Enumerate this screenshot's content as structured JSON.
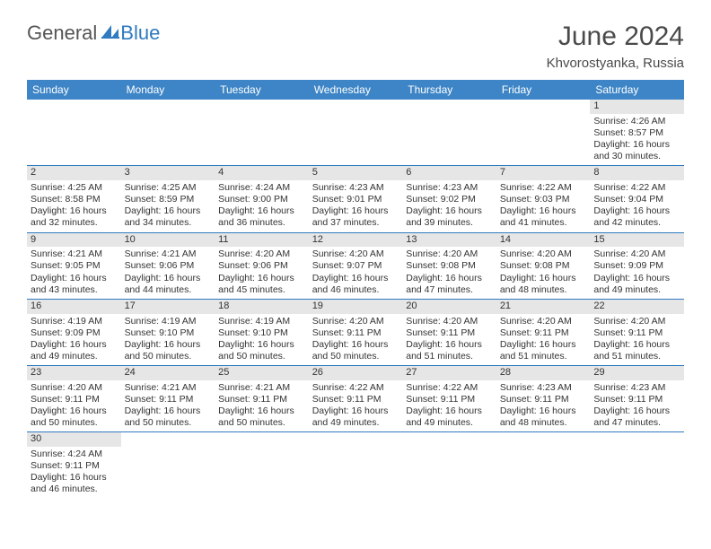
{
  "logo": {
    "general": "General",
    "blue": "Blue"
  },
  "title": "June 2024",
  "subtitle": "Khvorostyanka, Russia",
  "colors": {
    "header_bg": "#3d85c6",
    "header_text": "#ffffff",
    "border": "#2f7ac0",
    "daynum_bg": "#e6e6e6",
    "text": "#333333",
    "logo_blue": "#2f7ac0",
    "title_color": "#4a4a4a"
  },
  "weekdays": [
    "Sunday",
    "Monday",
    "Tuesday",
    "Wednesday",
    "Thursday",
    "Friday",
    "Saturday"
  ],
  "weeks": [
    [
      null,
      null,
      null,
      null,
      null,
      null,
      {
        "n": "1",
        "sunrise": "Sunrise: 4:26 AM",
        "sunset": "Sunset: 8:57 PM",
        "day1": "Daylight: 16 hours",
        "day2": "and 30 minutes."
      }
    ],
    [
      {
        "n": "2",
        "sunrise": "Sunrise: 4:25 AM",
        "sunset": "Sunset: 8:58 PM",
        "day1": "Daylight: 16 hours",
        "day2": "and 32 minutes."
      },
      {
        "n": "3",
        "sunrise": "Sunrise: 4:25 AM",
        "sunset": "Sunset: 8:59 PM",
        "day1": "Daylight: 16 hours",
        "day2": "and 34 minutes."
      },
      {
        "n": "4",
        "sunrise": "Sunrise: 4:24 AM",
        "sunset": "Sunset: 9:00 PM",
        "day1": "Daylight: 16 hours",
        "day2": "and 36 minutes."
      },
      {
        "n": "5",
        "sunrise": "Sunrise: 4:23 AM",
        "sunset": "Sunset: 9:01 PM",
        "day1": "Daylight: 16 hours",
        "day2": "and 37 minutes."
      },
      {
        "n": "6",
        "sunrise": "Sunrise: 4:23 AM",
        "sunset": "Sunset: 9:02 PM",
        "day1": "Daylight: 16 hours",
        "day2": "and 39 minutes."
      },
      {
        "n": "7",
        "sunrise": "Sunrise: 4:22 AM",
        "sunset": "Sunset: 9:03 PM",
        "day1": "Daylight: 16 hours",
        "day2": "and 41 minutes."
      },
      {
        "n": "8",
        "sunrise": "Sunrise: 4:22 AM",
        "sunset": "Sunset: 9:04 PM",
        "day1": "Daylight: 16 hours",
        "day2": "and 42 minutes."
      }
    ],
    [
      {
        "n": "9",
        "sunrise": "Sunrise: 4:21 AM",
        "sunset": "Sunset: 9:05 PM",
        "day1": "Daylight: 16 hours",
        "day2": "and 43 minutes."
      },
      {
        "n": "10",
        "sunrise": "Sunrise: 4:21 AM",
        "sunset": "Sunset: 9:06 PM",
        "day1": "Daylight: 16 hours",
        "day2": "and 44 minutes."
      },
      {
        "n": "11",
        "sunrise": "Sunrise: 4:20 AM",
        "sunset": "Sunset: 9:06 PM",
        "day1": "Daylight: 16 hours",
        "day2": "and 45 minutes."
      },
      {
        "n": "12",
        "sunrise": "Sunrise: 4:20 AM",
        "sunset": "Sunset: 9:07 PM",
        "day1": "Daylight: 16 hours",
        "day2": "and 46 minutes."
      },
      {
        "n": "13",
        "sunrise": "Sunrise: 4:20 AM",
        "sunset": "Sunset: 9:08 PM",
        "day1": "Daylight: 16 hours",
        "day2": "and 47 minutes."
      },
      {
        "n": "14",
        "sunrise": "Sunrise: 4:20 AM",
        "sunset": "Sunset: 9:08 PM",
        "day1": "Daylight: 16 hours",
        "day2": "and 48 minutes."
      },
      {
        "n": "15",
        "sunrise": "Sunrise: 4:20 AM",
        "sunset": "Sunset: 9:09 PM",
        "day1": "Daylight: 16 hours",
        "day2": "and 49 minutes."
      }
    ],
    [
      {
        "n": "16",
        "sunrise": "Sunrise: 4:19 AM",
        "sunset": "Sunset: 9:09 PM",
        "day1": "Daylight: 16 hours",
        "day2": "and 49 minutes."
      },
      {
        "n": "17",
        "sunrise": "Sunrise: 4:19 AM",
        "sunset": "Sunset: 9:10 PM",
        "day1": "Daylight: 16 hours",
        "day2": "and 50 minutes."
      },
      {
        "n": "18",
        "sunrise": "Sunrise: 4:19 AM",
        "sunset": "Sunset: 9:10 PM",
        "day1": "Daylight: 16 hours",
        "day2": "and 50 minutes."
      },
      {
        "n": "19",
        "sunrise": "Sunrise: 4:20 AM",
        "sunset": "Sunset: 9:11 PM",
        "day1": "Daylight: 16 hours",
        "day2": "and 50 minutes."
      },
      {
        "n": "20",
        "sunrise": "Sunrise: 4:20 AM",
        "sunset": "Sunset: 9:11 PM",
        "day1": "Daylight: 16 hours",
        "day2": "and 51 minutes."
      },
      {
        "n": "21",
        "sunrise": "Sunrise: 4:20 AM",
        "sunset": "Sunset: 9:11 PM",
        "day1": "Daylight: 16 hours",
        "day2": "and 51 minutes."
      },
      {
        "n": "22",
        "sunrise": "Sunrise: 4:20 AM",
        "sunset": "Sunset: 9:11 PM",
        "day1": "Daylight: 16 hours",
        "day2": "and 51 minutes."
      }
    ],
    [
      {
        "n": "23",
        "sunrise": "Sunrise: 4:20 AM",
        "sunset": "Sunset: 9:11 PM",
        "day1": "Daylight: 16 hours",
        "day2": "and 50 minutes."
      },
      {
        "n": "24",
        "sunrise": "Sunrise: 4:21 AM",
        "sunset": "Sunset: 9:11 PM",
        "day1": "Daylight: 16 hours",
        "day2": "and 50 minutes."
      },
      {
        "n": "25",
        "sunrise": "Sunrise: 4:21 AM",
        "sunset": "Sunset: 9:11 PM",
        "day1": "Daylight: 16 hours",
        "day2": "and 50 minutes."
      },
      {
        "n": "26",
        "sunrise": "Sunrise: 4:22 AM",
        "sunset": "Sunset: 9:11 PM",
        "day1": "Daylight: 16 hours",
        "day2": "and 49 minutes."
      },
      {
        "n": "27",
        "sunrise": "Sunrise: 4:22 AM",
        "sunset": "Sunset: 9:11 PM",
        "day1": "Daylight: 16 hours",
        "day2": "and 49 minutes."
      },
      {
        "n": "28",
        "sunrise": "Sunrise: 4:23 AM",
        "sunset": "Sunset: 9:11 PM",
        "day1": "Daylight: 16 hours",
        "day2": "and 48 minutes."
      },
      {
        "n": "29",
        "sunrise": "Sunrise: 4:23 AM",
        "sunset": "Sunset: 9:11 PM",
        "day1": "Daylight: 16 hours",
        "day2": "and 47 minutes."
      }
    ],
    [
      {
        "n": "30",
        "sunrise": "Sunrise: 4:24 AM",
        "sunset": "Sunset: 9:11 PM",
        "day1": "Daylight: 16 hours",
        "day2": "and 46 minutes."
      },
      null,
      null,
      null,
      null,
      null,
      null
    ]
  ]
}
